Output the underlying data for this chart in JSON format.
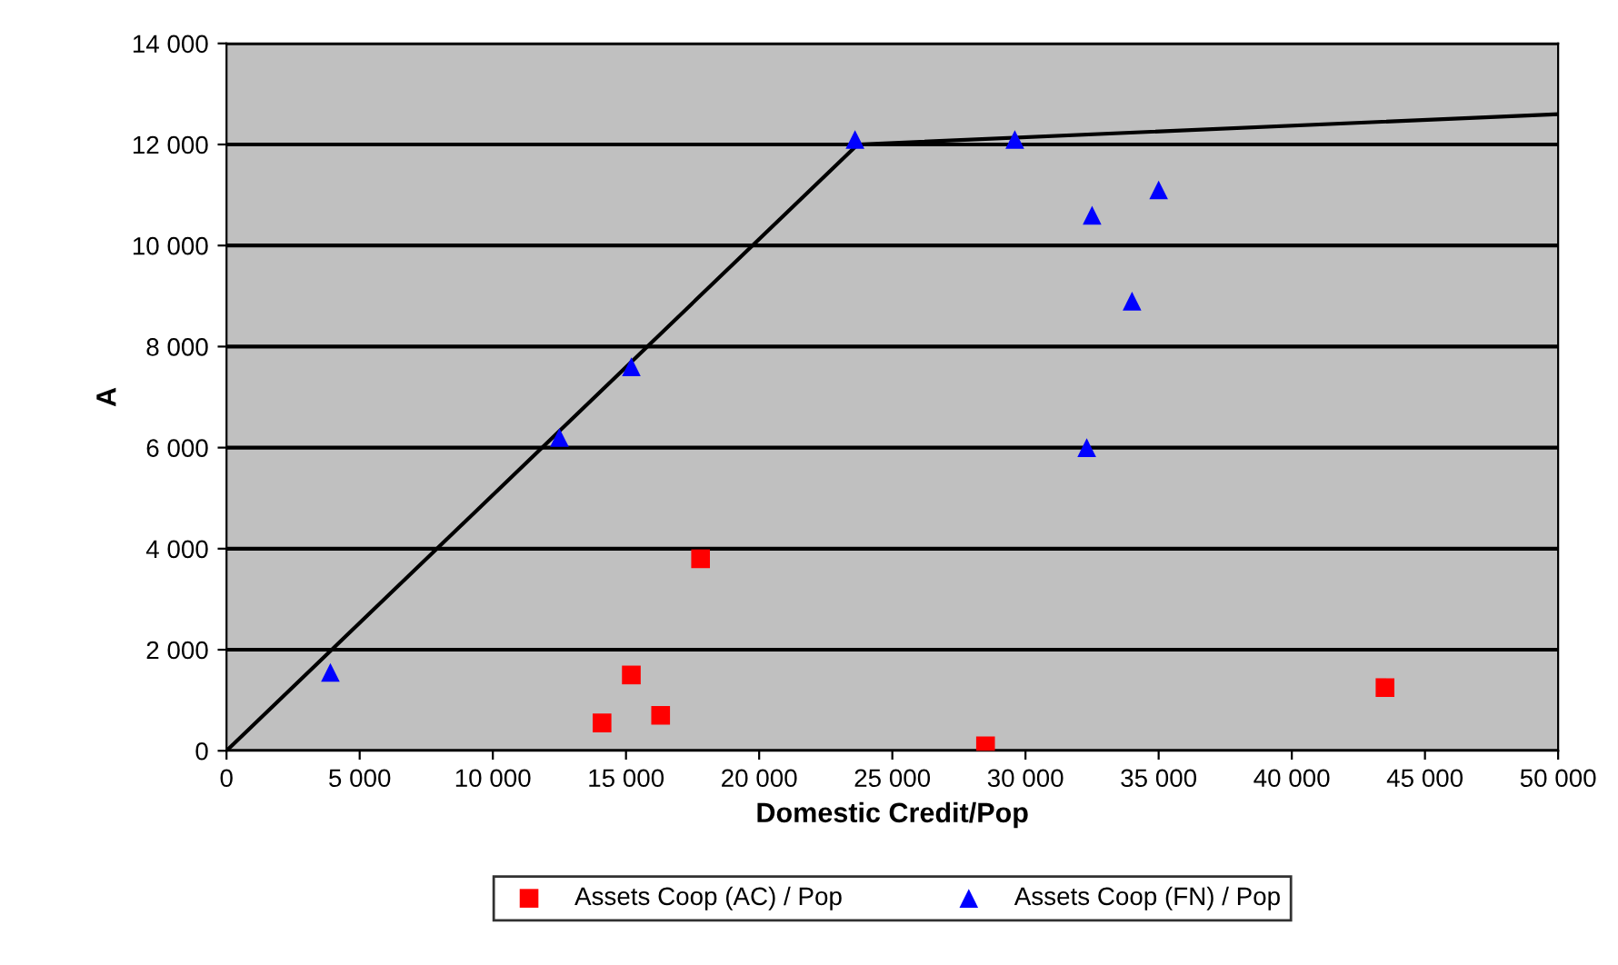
{
  "chart_data": {
    "type": "scatter",
    "xlabel": "Domestic Credit/Pop",
    "ylabel": "A",
    "xlim": [
      0,
      50000
    ],
    "xticks": [
      {
        "value": 0,
        "label": "0"
      },
      {
        "value": 5000,
        "label": "5 000"
      },
      {
        "value": 10000,
        "label": "10 000"
      },
      {
        "value": 15000,
        "label": "15 000"
      },
      {
        "value": 20000,
        "label": "20 000"
      },
      {
        "value": 25000,
        "label": "25 000"
      },
      {
        "value": 30000,
        "label": "30 000"
      },
      {
        "value": 35000,
        "label": "35 000"
      },
      {
        "value": 40000,
        "label": "40 000"
      },
      {
        "value": 45000,
        "label": "45 000"
      },
      {
        "value": 50000,
        "label": "50 000"
      }
    ],
    "ylim": [
      0,
      14000
    ],
    "yticks": [
      {
        "value": 0,
        "label": "0"
      },
      {
        "value": 2000,
        "label": "2 000"
      },
      {
        "value": 4000,
        "label": "4 000"
      },
      {
        "value": 6000,
        "label": "6 000"
      },
      {
        "value": 8000,
        "label": "8 000"
      },
      {
        "value": 10000,
        "label": "10 000"
      },
      {
        "value": 12000,
        "label": "12 000"
      },
      {
        "value": 14000,
        "label": "14 000"
      }
    ],
    "grid": "y",
    "legend": "bottom",
    "series": [
      {
        "name": "Assets Coop (AC) / Pop",
        "color": "#ff0000",
        "marker": "square",
        "x": [
          14100,
          15200,
          16300,
          17800,
          28500,
          43500
        ],
        "values": [
          550,
          1500,
          700,
          3800,
          100,
          1250
        ]
      },
      {
        "name": "Assets Coop (FN) / Pop",
        "color": "#0000ff",
        "marker": "triangle",
        "x": [
          3900,
          12500,
          15200,
          23600,
          29600,
          32500,
          34000,
          35000,
          32300
        ],
        "values": [
          1550,
          6200,
          7600,
          12100,
          12100,
          10600,
          8900,
          11100,
          6000
        ]
      },
      {
        "type": "line",
        "color": "#000000",
        "marker": "none",
        "x": [
          0,
          23700,
          50000
        ],
        "values": [
          0,
          12000,
          12600
        ]
      }
    ]
  }
}
